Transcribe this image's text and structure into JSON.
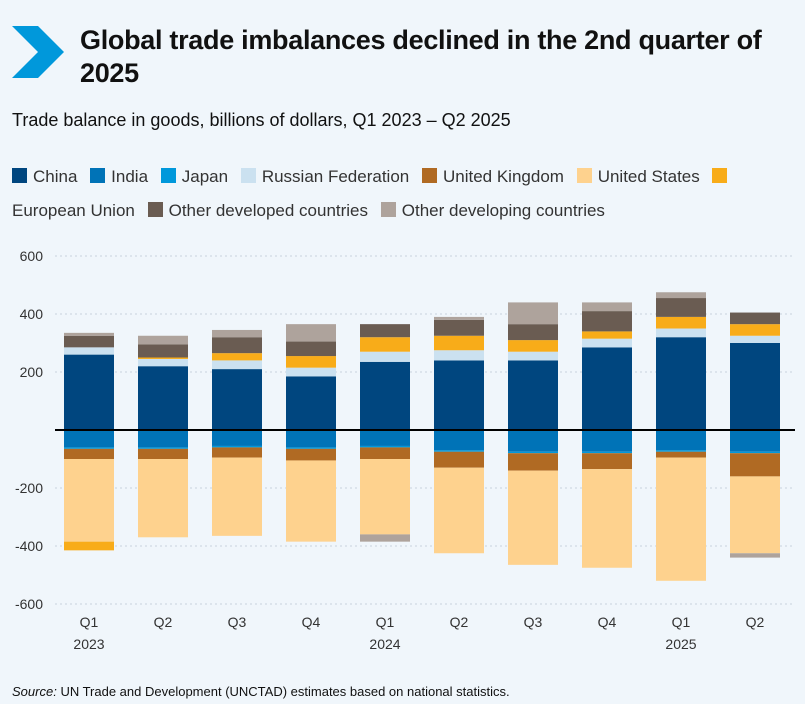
{
  "title": "Global trade imbalances declined in the 2nd quarter of 2025",
  "subtitle": "Trade balance in goods, billions of dollars, Q1 2023 – Q2 2025",
  "source_label": "Source:",
  "source_text": "UN Trade and Development (UNCTAD) estimates based on national statistics.",
  "chart_data": {
    "type": "bar",
    "stacked": true,
    "ylim": [
      -600,
      600
    ],
    "yticks": [
      600,
      400,
      200,
      -200,
      -400,
      -600
    ],
    "categories": [
      "Q1",
      "Q2",
      "Q3",
      "Q4",
      "Q1",
      "Q2",
      "Q3",
      "Q4",
      "Q1",
      "Q2"
    ],
    "years": [
      "2023",
      "",
      "",
      "",
      "2024",
      "",
      "",
      "",
      "2025",
      ""
    ],
    "series": [
      {
        "name": "China",
        "color": "#00467f",
        "values": [
          260,
          220,
          210,
          185,
          235,
          240,
          240,
          285,
          320,
          300
        ]
      },
      {
        "name": "India",
        "color": "#0073b7",
        "values": [
          -60,
          -60,
          -55,
          -60,
          -55,
          -70,
          -75,
          -75,
          -70,
          -75
        ]
      },
      {
        "name": "Japan",
        "color": "#0098db",
        "values": [
          -5,
          -5,
          -5,
          -5,
          -5,
          -5,
          -5,
          -5,
          -5,
          -5
        ]
      },
      {
        "name": "Russian Federation",
        "color": "#cbe1f0",
        "values": [
          25,
          25,
          30,
          30,
          35,
          35,
          30,
          30,
          30,
          25
        ]
      },
      {
        "name": "United Kingdom",
        "color": "#b06a23",
        "values": [
          -35,
          -35,
          -35,
          -40,
          -40,
          -55,
          -60,
          -55,
          -20,
          -80
        ]
      },
      {
        "name": "United States",
        "color": "#fed28e",
        "values": [
          -285,
          -270,
          -270,
          -280,
          -260,
          -295,
          -325,
          -340,
          -425,
          -265
        ]
      },
      {
        "name": "European Union",
        "color": "#f8ac19",
        "values": [
          -30,
          5,
          25,
          40,
          50,
          50,
          40,
          25,
          40,
          40
        ]
      },
      {
        "name": "Other developed countries",
        "color": "#6a5c52",
        "values": [
          40,
          45,
          55,
          50,
          45,
          55,
          55,
          70,
          65,
          40
        ]
      },
      {
        "name": "Other developing countries",
        "color": "#aea39c",
        "values": [
          10,
          30,
          25,
          60,
          -25,
          10,
          75,
          30,
          20,
          -15
        ]
      }
    ]
  }
}
